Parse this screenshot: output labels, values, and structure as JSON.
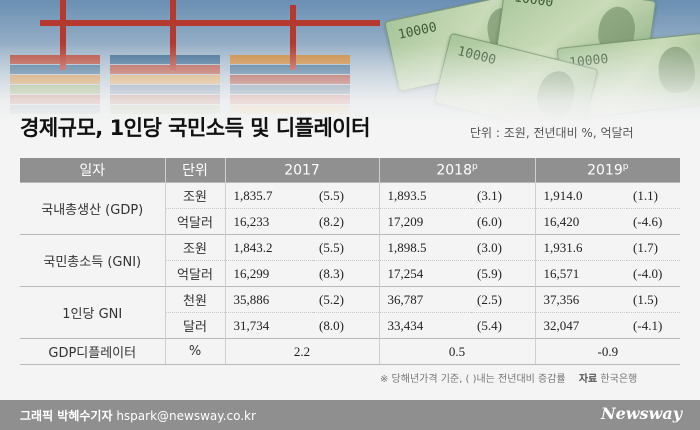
{
  "title": "경제규모, 1인당 국민소득 및 디플레이터",
  "unit_note": "단위 : 조원, 전년대비 %, 억달러",
  "chart_data": {
    "type": "table",
    "columns": {
      "date": "일자",
      "unit": "단위",
      "years": [
        {
          "label": "2017",
          "sup": ""
        },
        {
          "label": "2018",
          "sup": "p"
        },
        {
          "label": "2019",
          "sup": "p"
        }
      ]
    },
    "rows": [
      {
        "item": "국내총생산 (GDP)",
        "unit": "조원",
        "values": [
          [
            "1,835.7",
            "(5.5)"
          ],
          [
            "1,893.5",
            "(3.1)"
          ],
          [
            "1,914.0",
            "(1.1)"
          ]
        ]
      },
      {
        "item": "",
        "unit": "억달러",
        "values": [
          [
            "16,233",
            "(8.2)"
          ],
          [
            "17,209",
            "(6.0)"
          ],
          [
            "16,420",
            "(-4.6)"
          ]
        ]
      },
      {
        "item": "국민총소득 (GNI)",
        "unit": "조원",
        "values": [
          [
            "1,843.2",
            "(5.5)"
          ],
          [
            "1,898.5",
            "(3.0)"
          ],
          [
            "1,931.6",
            "(1.7)"
          ]
        ]
      },
      {
        "item": "",
        "unit": "억달러",
        "values": [
          [
            "16,299",
            "(8.3)"
          ],
          [
            "17,254",
            "(5.9)"
          ],
          [
            "16,571",
            "(-4.0)"
          ]
        ]
      },
      {
        "item": "1인당 GNI",
        "unit": "천원",
        "values": [
          [
            "35,886",
            "(5.2)"
          ],
          [
            "36,787",
            "(2.5)"
          ],
          [
            "37,356",
            "(1.5)"
          ]
        ]
      },
      {
        "item": "",
        "unit": "달러",
        "values": [
          [
            "31,734",
            "(8.0)"
          ],
          [
            "33,434",
            "(5.4)"
          ],
          [
            "32,047",
            "(-4.1)"
          ]
        ]
      },
      {
        "item": "GDP디플레이터",
        "unit": "%",
        "values": [
          "2.2",
          "0.5",
          "-0.9"
        ]
      }
    ]
  },
  "footnote": "※ 당해년가격 기준, ( )내는 전년대비 증감률",
  "source_label": "자료",
  "source": "한국은행",
  "credit_label": "그래픽 박혜수기자",
  "credit_email": "hspark@newsway.co.kr",
  "logo": "Newsway",
  "bill_amount": "10000"
}
